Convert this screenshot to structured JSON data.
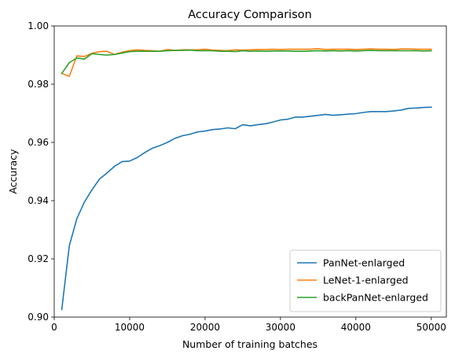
{
  "chart_data": {
    "type": "line",
    "title": "Accuracy Comparison",
    "xlabel": "Number of training batches",
    "ylabel": "Accuracy",
    "xlim": [
      0,
      52000
    ],
    "ylim": [
      0.9,
      1.0
    ],
    "xticks": [
      0,
      10000,
      20000,
      30000,
      40000,
      50000
    ],
    "yticks": [
      0.9,
      0.92,
      0.94,
      0.96,
      0.98,
      1.0
    ],
    "ytick_labels": [
      "0.90",
      "0.92",
      "0.94",
      "0.96",
      "0.98",
      "1.00"
    ],
    "xtick_labels": [
      "0",
      "10000",
      "20000",
      "30000",
      "40000",
      "50000"
    ],
    "grid": false,
    "legend_position": "lower-right",
    "x": [
      1000,
      2000,
      3000,
      4000,
      5000,
      6000,
      7000,
      8000,
      9000,
      10000,
      11000,
      12000,
      13000,
      14000,
      15000,
      16000,
      17000,
      18000,
      19000,
      20000,
      21000,
      22000,
      23000,
      24000,
      25000,
      26000,
      27000,
      28000,
      29000,
      30000,
      31000,
      32000,
      33000,
      34000,
      35000,
      36000,
      37000,
      38000,
      39000,
      40000,
      41000,
      42000,
      43000,
      44000,
      45000,
      46000,
      47000,
      48000,
      49000,
      50000
    ],
    "series": [
      {
        "name": "PanNet-enlarged",
        "color": "#1f77b4",
        "values": [
          0.9026,
          0.9245,
          0.9338,
          0.9395,
          0.9437,
          0.9474,
          0.9495,
          0.9518,
          0.9534,
          0.9536,
          0.9548,
          0.9565,
          0.958,
          0.9589,
          0.96,
          0.9614,
          0.9623,
          0.9628,
          0.9636,
          0.9639,
          0.9644,
          0.9646,
          0.965,
          0.9647,
          0.9661,
          0.9657,
          0.9661,
          0.9664,
          0.967,
          0.9677,
          0.968,
          0.9687,
          0.9687,
          0.969,
          0.9693,
          0.9696,
          0.9693,
          0.9695,
          0.9697,
          0.9699,
          0.9703,
          0.9706,
          0.9706,
          0.9706,
          0.9708,
          0.9711,
          0.9717,
          0.9718,
          0.972,
          0.9721
        ]
      },
      {
        "name": "LeNet-1-enlarged",
        "color": "#ff7f0e",
        "values": [
          0.9837,
          0.9827,
          0.9897,
          0.9895,
          0.9906,
          0.9912,
          0.9913,
          0.9902,
          0.991,
          0.9915,
          0.9918,
          0.9916,
          0.9915,
          0.9913,
          0.9919,
          0.9916,
          0.9918,
          0.9918,
          0.9918,
          0.992,
          0.9917,
          0.9916,
          0.9915,
          0.9918,
          0.9917,
          0.9918,
          0.9919,
          0.9919,
          0.992,
          0.9919,
          0.992,
          0.992,
          0.992,
          0.992,
          0.9922,
          0.9919,
          0.992,
          0.992,
          0.992,
          0.9919,
          0.992,
          0.9921,
          0.992,
          0.992,
          0.9919,
          0.9921,
          0.9921,
          0.992,
          0.992,
          0.992
        ]
      },
      {
        "name": "backPanNet-enlarged",
        "color": "#2ca02c",
        "values": [
          0.9837,
          0.9874,
          0.989,
          0.9886,
          0.9905,
          0.9902,
          0.99,
          0.9902,
          0.9907,
          0.9912,
          0.9913,
          0.9913,
          0.9913,
          0.9913,
          0.9915,
          0.9916,
          0.9916,
          0.9917,
          0.9915,
          0.9915,
          0.9915,
          0.9913,
          0.9913,
          0.9912,
          0.9915,
          0.9913,
          0.9914,
          0.9913,
          0.9914,
          0.9914,
          0.9914,
          0.9913,
          0.9913,
          0.9914,
          0.9915,
          0.9914,
          0.9915,
          0.9914,
          0.9915,
          0.9914,
          0.9915,
          0.9916,
          0.9915,
          0.9915,
          0.9915,
          0.9915,
          0.9915,
          0.9915,
          0.9914,
          0.9915
        ]
      }
    ]
  }
}
